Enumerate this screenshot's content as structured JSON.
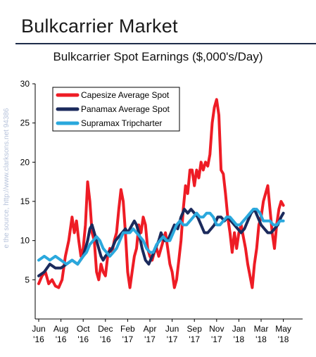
{
  "page": {
    "title": "Bulkcarrier Market",
    "watermark": "e the source, http://www.clarksons.net 94386"
  },
  "chart_data": {
    "type": "line",
    "title": "Bulkcarrier Spot Earnings ($,000's/Day)",
    "xlabel": "",
    "ylabel": "",
    "ylim": [
      0,
      30
    ],
    "yticks": [
      5,
      10,
      15,
      20,
      25,
      30
    ],
    "xlim": [
      0,
      25
    ],
    "x_ticks": [
      {
        "x": 0,
        "month": "Jun",
        "year": "'16"
      },
      {
        "x": 2,
        "month": "Aug",
        "year": "'16"
      },
      {
        "x": 4,
        "month": "Oct",
        "year": "'16"
      },
      {
        "x": 6,
        "month": "Dec",
        "year": "'16"
      },
      {
        "x": 8,
        "month": "Feb",
        "year": "'17"
      },
      {
        "x": 10,
        "month": "Apr",
        "year": "'17"
      },
      {
        "x": 12,
        "month": "Jun",
        "year": "'17"
      },
      {
        "x": 14,
        "month": "Sep",
        "year": "'17"
      },
      {
        "x": 16,
        "month": "Nov",
        "year": "'17"
      },
      {
        "x": 18,
        "month": "Jan",
        "year": "'18"
      },
      {
        "x": 20,
        "month": "Mar",
        "year": "'18"
      },
      {
        "x": 22,
        "month": "May",
        "year": "'18"
      }
    ],
    "legend_position": "top-left",
    "grid": false,
    "series": [
      {
        "name": "Capesize Average Spot",
        "color": "#ee1c25",
        "points": [
          [
            0,
            4.5
          ],
          [
            0.3,
            5.5
          ],
          [
            0.6,
            6
          ],
          [
            0.9,
            4.5
          ],
          [
            1.2,
            5
          ],
          [
            1.5,
            4.2
          ],
          [
            1.8,
            4
          ],
          [
            2.1,
            5
          ],
          [
            2.4,
            8
          ],
          [
            2.7,
            10
          ],
          [
            3.0,
            13
          ],
          [
            3.2,
            11
          ],
          [
            3.4,
            12.5
          ],
          [
            3.6,
            10
          ],
          [
            3.8,
            8
          ],
          [
            4.0,
            9
          ],
          [
            4.2,
            12
          ],
          [
            4.4,
            17.5
          ],
          [
            4.6,
            15
          ],
          [
            4.8,
            11
          ],
          [
            5.0,
            10
          ],
          [
            5.2,
            6
          ],
          [
            5.4,
            5
          ],
          [
            5.6,
            7
          ],
          [
            5.8,
            6
          ],
          [
            6.0,
            5.5
          ],
          [
            6.2,
            8
          ],
          [
            6.4,
            9
          ],
          [
            6.6,
            8.5
          ],
          [
            6.8,
            10
          ],
          [
            7.0,
            11
          ],
          [
            7.2,
            14
          ],
          [
            7.4,
            16.5
          ],
          [
            7.6,
            15
          ],
          [
            7.8,
            11
          ],
          [
            8.0,
            6
          ],
          [
            8.2,
            4
          ],
          [
            8.4,
            6
          ],
          [
            8.6,
            8
          ],
          [
            8.8,
            9
          ],
          [
            9.0,
            12
          ],
          [
            9.2,
            11
          ],
          [
            9.4,
            13
          ],
          [
            9.6,
            12
          ],
          [
            9.8,
            9
          ],
          [
            10.0,
            8
          ],
          [
            10.2,
            7.5
          ],
          [
            10.4,
            8.5
          ],
          [
            10.6,
            9
          ],
          [
            10.8,
            8
          ],
          [
            11.0,
            9
          ],
          [
            11.2,
            10
          ],
          [
            11.4,
            11
          ],
          [
            11.6,
            9
          ],
          [
            11.8,
            7
          ],
          [
            12.0,
            6
          ],
          [
            12.2,
            4
          ],
          [
            12.4,
            5
          ],
          [
            12.6,
            7.5
          ],
          [
            12.8,
            10
          ],
          [
            13.0,
            14
          ],
          [
            13.2,
            17
          ],
          [
            13.4,
            16
          ],
          [
            13.6,
            19
          ],
          [
            13.8,
            19
          ],
          [
            14.0,
            17
          ],
          [
            14.2,
            19
          ],
          [
            14.4,
            18
          ],
          [
            14.6,
            20
          ],
          [
            14.8,
            19
          ],
          [
            15.0,
            20
          ],
          [
            15.2,
            19.5
          ],
          [
            15.4,
            21
          ],
          [
            15.6,
            25
          ],
          [
            15.8,
            27
          ],
          [
            16.0,
            28
          ],
          [
            16.2,
            26
          ],
          [
            16.4,
            19
          ],
          [
            16.6,
            18.5
          ],
          [
            16.8,
            16
          ],
          [
            17.0,
            13
          ],
          [
            17.2,
            11
          ],
          [
            17.4,
            8.5
          ],
          [
            17.6,
            11
          ],
          [
            17.8,
            9
          ],
          [
            18.0,
            11
          ],
          [
            18.2,
            12
          ],
          [
            18.4,
            10.5
          ],
          [
            18.6,
            9
          ],
          [
            18.8,
            7
          ],
          [
            19.0,
            5.5
          ],
          [
            19.2,
            4
          ],
          [
            19.4,
            7
          ],
          [
            19.6,
            9
          ],
          [
            19.8,
            12
          ],
          [
            20.0,
            13
          ],
          [
            20.2,
            15
          ],
          [
            20.4,
            16
          ],
          [
            20.6,
            17
          ],
          [
            20.8,
            14
          ],
          [
            21.0,
            11
          ],
          [
            21.2,
            9
          ],
          [
            21.4,
            12
          ],
          [
            21.6,
            14
          ],
          [
            21.8,
            15
          ],
          [
            22.0,
            14.5
          ]
        ]
      },
      {
        "name": "Panamax Average Spot",
        "color": "#1b2a5c",
        "points": [
          [
            0,
            5.5
          ],
          [
            0.5,
            6
          ],
          [
            1.0,
            7
          ],
          [
            1.5,
            6.5
          ],
          [
            2.0,
            6.5
          ],
          [
            2.5,
            7
          ],
          [
            3.0,
            7.5
          ],
          [
            3.5,
            7
          ],
          [
            4.0,
            8
          ],
          [
            4.2,
            9
          ],
          [
            4.4,
            10
          ],
          [
            4.6,
            11.5
          ],
          [
            4.8,
            12
          ],
          [
            5.0,
            11
          ],
          [
            5.2,
            10
          ],
          [
            5.4,
            9
          ],
          [
            5.6,
            8
          ],
          [
            5.8,
            7.5
          ],
          [
            6.0,
            8
          ],
          [
            6.3,
            8.5
          ],
          [
            6.6,
            9
          ],
          [
            6.9,
            10
          ],
          [
            7.2,
            10.5
          ],
          [
            7.5,
            11
          ],
          [
            7.8,
            11.5
          ],
          [
            8.0,
            11
          ],
          [
            8.2,
            11.5
          ],
          [
            8.4,
            12
          ],
          [
            8.6,
            12.5
          ],
          [
            8.8,
            12
          ],
          [
            9.0,
            11
          ],
          [
            9.3,
            9
          ],
          [
            9.6,
            7.5
          ],
          [
            9.9,
            7
          ],
          [
            10.2,
            8
          ],
          [
            10.5,
            9
          ],
          [
            10.8,
            10
          ],
          [
            11.0,
            11
          ],
          [
            11.3,
            10
          ],
          [
            11.6,
            10
          ],
          [
            11.9,
            11
          ],
          [
            12.2,
            12
          ],
          [
            12.5,
            11.5
          ],
          [
            12.8,
            13
          ],
          [
            13.1,
            14
          ],
          [
            13.4,
            13.5
          ],
          [
            13.7,
            14
          ],
          [
            14.0,
            13.5
          ],
          [
            14.3,
            13
          ],
          [
            14.6,
            12
          ],
          [
            14.9,
            11
          ],
          [
            15.2,
            11
          ],
          [
            15.5,
            11.5
          ],
          [
            15.8,
            12
          ],
          [
            16.1,
            13
          ],
          [
            16.4,
            13
          ],
          [
            16.7,
            12.5
          ],
          [
            17.0,
            13
          ],
          [
            17.3,
            12.5
          ],
          [
            17.6,
            12
          ],
          [
            17.9,
            11.5
          ],
          [
            18.2,
            11
          ],
          [
            18.5,
            11.5
          ],
          [
            18.8,
            12.5
          ],
          [
            19.1,
            13.5
          ],
          [
            19.4,
            14
          ],
          [
            19.7,
            13
          ],
          [
            20.0,
            12
          ],
          [
            20.3,
            11.5
          ],
          [
            20.6,
            11
          ],
          [
            20.9,
            11
          ],
          [
            21.2,
            11.5
          ],
          [
            21.5,
            12
          ],
          [
            21.8,
            13
          ],
          [
            22.0,
            13.5
          ]
        ]
      },
      {
        "name": "Supramax Tripcharter",
        "color": "#2aa8dd",
        "points": [
          [
            0,
            7.5
          ],
          [
            0.5,
            8
          ],
          [
            1.0,
            7.5
          ],
          [
            1.5,
            8
          ],
          [
            2.0,
            7.5
          ],
          [
            2.5,
            7
          ],
          [
            3.0,
            7.5
          ],
          [
            3.5,
            7
          ],
          [
            4.0,
            8
          ],
          [
            4.3,
            8.5
          ],
          [
            4.6,
            9.5
          ],
          [
            4.9,
            10
          ],
          [
            5.2,
            10.5
          ],
          [
            5.5,
            10
          ],
          [
            5.8,
            9
          ],
          [
            6.1,
            8.5
          ],
          [
            6.4,
            8
          ],
          [
            6.7,
            8.5
          ],
          [
            7.0,
            9
          ],
          [
            7.3,
            10
          ],
          [
            7.6,
            11
          ],
          [
            7.9,
            11
          ],
          [
            8.2,
            11
          ],
          [
            8.5,
            11.5
          ],
          [
            8.8,
            11
          ],
          [
            9.1,
            10.5
          ],
          [
            9.4,
            10
          ],
          [
            9.7,
            9
          ],
          [
            10.0,
            8.5
          ],
          [
            10.3,
            8.5
          ],
          [
            10.6,
            9.5
          ],
          [
            10.9,
            10
          ],
          [
            11.2,
            10.5
          ],
          [
            11.5,
            10
          ],
          [
            11.8,
            10
          ],
          [
            12.1,
            11
          ],
          [
            12.4,
            12
          ],
          [
            12.7,
            12.5
          ],
          [
            13.0,
            12
          ],
          [
            13.3,
            12
          ],
          [
            13.6,
            12.5
          ],
          [
            13.9,
            13
          ],
          [
            14.2,
            13.5
          ],
          [
            14.5,
            13
          ],
          [
            14.8,
            13
          ],
          [
            15.1,
            13.5
          ],
          [
            15.4,
            13.5
          ],
          [
            15.7,
            13
          ],
          [
            16.0,
            12
          ],
          [
            16.3,
            12
          ],
          [
            16.6,
            12.5
          ],
          [
            16.9,
            13
          ],
          [
            17.2,
            13
          ],
          [
            17.5,
            12.5
          ],
          [
            17.8,
            12
          ],
          [
            18.1,
            12
          ],
          [
            18.4,
            12.5
          ],
          [
            18.7,
            13
          ],
          [
            19.0,
            13.5
          ],
          [
            19.3,
            14
          ],
          [
            19.6,
            14
          ],
          [
            19.9,
            13.5
          ],
          [
            20.2,
            12.5
          ],
          [
            20.5,
            12.5
          ],
          [
            20.8,
            12.5
          ],
          [
            21.1,
            12
          ],
          [
            21.4,
            12
          ],
          [
            21.7,
            12.5
          ],
          [
            22.0,
            12.5
          ]
        ]
      }
    ]
  }
}
